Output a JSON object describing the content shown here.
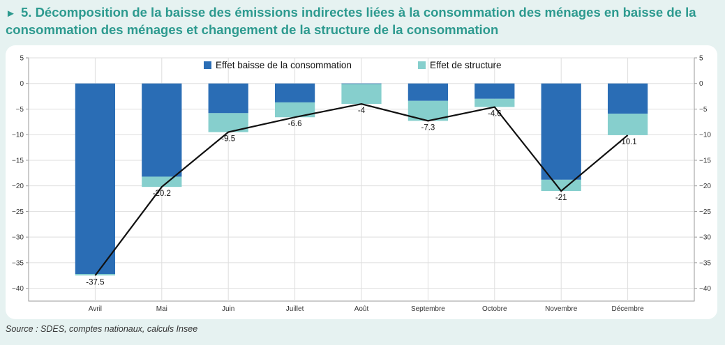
{
  "header": {
    "title": "5. Décomposition de la baisse des émissions indirectes liées à la consommation des ménages en baisse de la consommation des ménages et changement de la structure de la consommation"
  },
  "footer": {
    "source": "Source : SDES, comptes nationaux, calculs Insee"
  },
  "chart_data": {
    "type": "bar",
    "stacked": true,
    "categories": [
      "Avril",
      "Mai",
      "Juin",
      "Juillet",
      "Août",
      "Septembre",
      "Octobre",
      "Novembre",
      "Décembre"
    ],
    "series": [
      {
        "name": "Effet baisse de la consommation",
        "color": "#2a6db5",
        "values": [
          -37.2,
          -18.2,
          -5.8,
          -3.7,
          -0.1,
          -3.4,
          -3.0,
          -18.8,
          -5.9
        ]
      },
      {
        "name": "Effet de structure",
        "color": "#86cfcd",
        "values": [
          -0.3,
          -2.0,
          -3.7,
          -2.9,
          -3.9,
          -3.9,
          -1.6,
          -2.2,
          -4.2
        ]
      }
    ],
    "total_line": {
      "values": [
        -37.5,
        -20.2,
        -9.5,
        -6.6,
        -4,
        -7.3,
        -4.6,
        -21,
        -10.1
      ],
      "labels": [
        "-37.5",
        "-20.2",
        "-9.5",
        "-6.6",
        "-4",
        "-7.3",
        "-4.6",
        "-21",
        "-10.1"
      ],
      "color": "#111111"
    },
    "ylim": [
      -42.5,
      5
    ],
    "yticks": [
      5,
      0,
      -5,
      -10,
      -15,
      -20,
      -25,
      -30,
      -35,
      -40
    ],
    "ytick_labels": [
      "5",
      "0",
      "−5",
      "−10",
      "−15",
      "−20",
      "−25",
      "−30",
      "−35",
      "−40"
    ],
    "grid": true,
    "legend_position": "top",
    "xlabel": "",
    "ylabel": ""
  }
}
